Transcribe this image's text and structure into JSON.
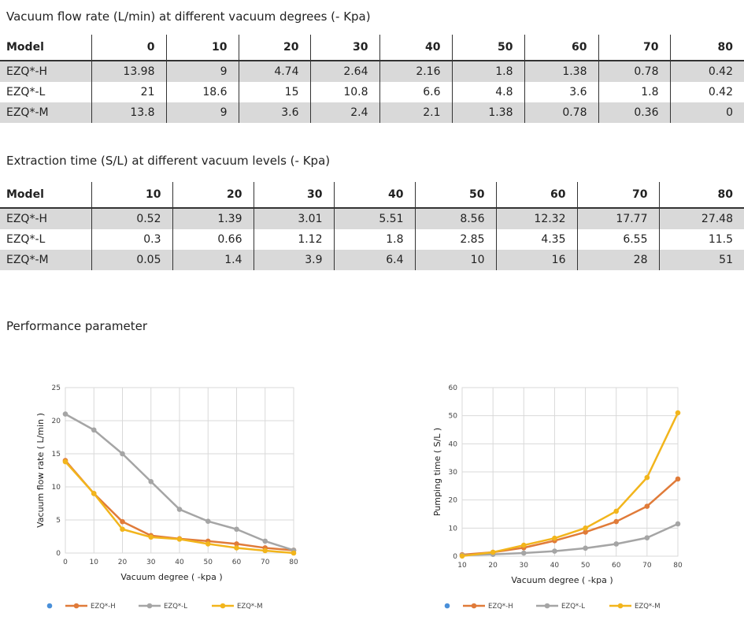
{
  "flow_table": {
    "title": "Vacuum flow rate (L/min) at different vacuum degrees (- Kpa)",
    "headers": [
      "Model",
      "0",
      "10",
      "20",
      "30",
      "40",
      "50",
      "60",
      "70",
      "80"
    ],
    "rows": [
      [
        "EZQ*-H",
        "13.98",
        "9",
        "4.74",
        "2.64",
        "2.16",
        "1.8",
        "1.38",
        "0.78",
        "0.42"
      ],
      [
        "EZQ*-L",
        "21",
        "18.6",
        "15",
        "10.8",
        "6.6",
        "4.8",
        "3.6",
        "1.8",
        "0.42"
      ],
      [
        "EZQ*-M",
        "13.8",
        "9",
        "3.6",
        "2.4",
        "2.1",
        "1.38",
        "0.78",
        "0.36",
        "0"
      ]
    ]
  },
  "time_table": {
    "title": "Extraction time (S/L) at different vacuum levels (- Kpa)",
    "headers": [
      "Model",
      "10",
      "20",
      "30",
      "40",
      "50",
      "60",
      "70",
      "80"
    ],
    "rows": [
      [
        "EZQ*-H",
        "0.52",
        "1.39",
        "3.01",
        "5.51",
        "8.56",
        "12.32",
        "17.77",
        "27.48"
      ],
      [
        "EZQ*-L",
        "0.3",
        "0.66",
        "1.12",
        "1.8",
        "2.85",
        "4.35",
        "6.55",
        "11.5"
      ],
      [
        "EZQ*-M",
        "0.05",
        "1.4",
        "3.9",
        "6.4",
        "10",
        "16",
        "28",
        "51"
      ]
    ]
  },
  "performance_title": "Performance parameter",
  "chart_data": [
    {
      "type": "line",
      "xlabel": "Vacuum degree ( -kpa )",
      "ylabel": "Vacuum flow rate ( L/min )",
      "x": [
        0,
        10,
        20,
        30,
        40,
        50,
        60,
        70,
        80
      ],
      "xticks": [
        "0",
        "10",
        "20",
        "30",
        "40",
        "50",
        "60",
        "70",
        "80"
      ],
      "yticks": [
        "0",
        "5",
        "10",
        "15",
        "20",
        "25"
      ],
      "xlim": [
        0,
        80
      ],
      "ylim": [
        0,
        25
      ],
      "grid": true,
      "legend_position": "bottom",
      "series": [
        {
          "name": "EZQ*-H",
          "color": "#e07b39",
          "values": [
            13.98,
            9,
            4.74,
            2.64,
            2.16,
            1.8,
            1.38,
            0.78,
            0.42
          ]
        },
        {
          "name": "EZQ*-L",
          "color": "#a5a5a5",
          "values": [
            21,
            18.6,
            15,
            10.8,
            6.6,
            4.8,
            3.6,
            1.8,
            0.42
          ]
        },
        {
          "name": "EZQ*-M",
          "color": "#f2b51c",
          "values": [
            13.8,
            9,
            3.6,
            2.4,
            2.1,
            1.38,
            0.78,
            0.36,
            0
          ]
        }
      ],
      "legend_empty_marker_color": "#4a90d9"
    },
    {
      "type": "line",
      "xlabel": "Vacuum degree ( -kpa )",
      "ylabel": "Pumping time ( S/L )",
      "x": [
        10,
        20,
        30,
        40,
        50,
        60,
        70,
        80
      ],
      "xticks": [
        "10",
        "20",
        "30",
        "40",
        "50",
        "60",
        "70",
        "80"
      ],
      "yticks": [
        "0",
        "10",
        "20",
        "30",
        "40",
        "50",
        "60"
      ],
      "xlim": [
        10,
        80
      ],
      "ylim": [
        0,
        60
      ],
      "grid": true,
      "legend_position": "bottom",
      "series": [
        {
          "name": "EZQ*-H",
          "color": "#e07b39",
          "values": [
            0.52,
            1.39,
            3.01,
            5.51,
            8.56,
            12.32,
            17.77,
            27.48
          ]
        },
        {
          "name": "EZQ*-L",
          "color": "#a5a5a5",
          "values": [
            0.3,
            0.66,
            1.12,
            1.8,
            2.85,
            4.35,
            6.55,
            11.5
          ]
        },
        {
          "name": "EZQ*-M",
          "color": "#f2b51c",
          "values": [
            0.05,
            1.4,
            3.9,
            6.4,
            10,
            16,
            28,
            51
          ]
        }
      ],
      "legend_empty_marker_color": "#4a90d9"
    }
  ]
}
